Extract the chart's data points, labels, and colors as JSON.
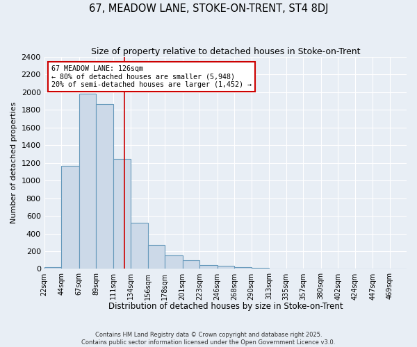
{
  "title1": "67, MEADOW LANE, STOKE-ON-TRENT, ST4 8DJ",
  "title2": "Size of property relative to detached houses in Stoke-on-Trent",
  "xlabel": "Distribution of detached houses by size in Stoke-on-Trent",
  "ylabel": "Number of detached properties",
  "bin_labels": [
    "22sqm",
    "44sqm",
    "67sqm",
    "89sqm",
    "111sqm",
    "134sqm",
    "156sqm",
    "178sqm",
    "201sqm",
    "223sqm",
    "246sqm",
    "268sqm",
    "290sqm",
    "313sqm",
    "335sqm",
    "357sqm",
    "380sqm",
    "402sqm",
    "424sqm",
    "447sqm",
    "469sqm"
  ],
  "bin_edges": [
    22,
    44,
    67,
    89,
    111,
    134,
    156,
    178,
    201,
    223,
    246,
    268,
    290,
    313,
    335,
    357,
    380,
    402,
    424,
    447,
    469,
    491
  ],
  "bar_heights": [
    22,
    1165,
    1980,
    1860,
    1240,
    520,
    270,
    150,
    95,
    45,
    35,
    20,
    8,
    5,
    3,
    2,
    1,
    1,
    1,
    1,
    0
  ],
  "bar_color": "#ccd9e8",
  "bar_edge_color": "#6699bb",
  "bg_color": "#e8eef5",
  "grid_color": "#ffffff",
  "vline_x": 126,
  "vline_color": "#cc0000",
  "ylim": [
    0,
    2400
  ],
  "yticks": [
    0,
    200,
    400,
    600,
    800,
    1000,
    1200,
    1400,
    1600,
    1800,
    2000,
    2200,
    2400
  ],
  "annotation_title": "67 MEADOW LANE: 126sqm",
  "annotation_line1": "← 80% of detached houses are smaller (5,948)",
  "annotation_line2": "20% of semi-detached houses are larger (1,452) →",
  "annotation_box_edge": "#cc0000",
  "footnote1": "Contains HM Land Registry data © Crown copyright and database right 2025.",
  "footnote2": "Contains public sector information licensed under the Open Government Licence v3.0.",
  "title1_fontsize": 10.5,
  "title2_fontsize": 9,
  "ylabel_fontsize": 8,
  "xlabel_fontsize": 8.5,
  "ytick_fontsize": 8,
  "xtick_fontsize": 7
}
